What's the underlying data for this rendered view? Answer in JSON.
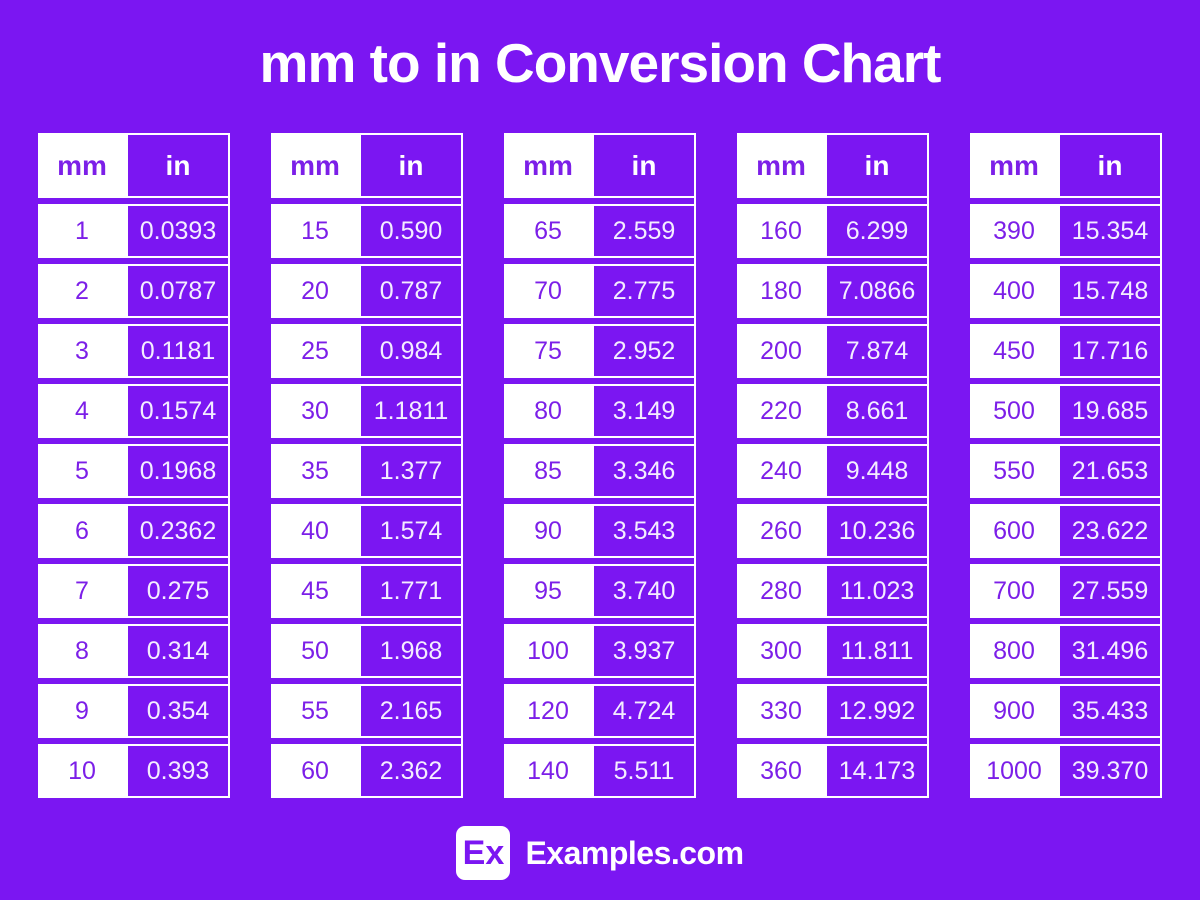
{
  "page": {
    "title": "mm to in Conversion Chart"
  },
  "footer": {
    "logo_badge": "Ex",
    "site_name": "Examples.com"
  },
  "colors": {
    "background": "#7b16f2",
    "cell_purple": "#7b16f2",
    "header_text_on_white": "#7c1fe8",
    "text_on_purple": "#ffffff"
  },
  "chart_data": {
    "type": "table",
    "title": "mm to in Conversion Chart",
    "columns": [
      "mm",
      "in"
    ],
    "tables": [
      {
        "rows": [
          [
            "1",
            "0.0393"
          ],
          [
            "2",
            "0.0787"
          ],
          [
            "3",
            "0.1181"
          ],
          [
            "4",
            "0.1574"
          ],
          [
            "5",
            "0.1968"
          ],
          [
            "6",
            "0.2362"
          ],
          [
            "7",
            "0.275"
          ],
          [
            "8",
            "0.314"
          ],
          [
            "9",
            "0.354"
          ],
          [
            "10",
            "0.393"
          ]
        ]
      },
      {
        "rows": [
          [
            "15",
            "0.590"
          ],
          [
            "20",
            "0.787"
          ],
          [
            "25",
            "0.984"
          ],
          [
            "30",
            "1.1811"
          ],
          [
            "35",
            "1.377"
          ],
          [
            "40",
            "1.574"
          ],
          [
            "45",
            "1.771"
          ],
          [
            "50",
            "1.968"
          ],
          [
            "55",
            "2.165"
          ],
          [
            "60",
            "2.362"
          ]
        ]
      },
      {
        "rows": [
          [
            "65",
            "2.559"
          ],
          [
            "70",
            "2.775"
          ],
          [
            "75",
            "2.952"
          ],
          [
            "80",
            "3.149"
          ],
          [
            "85",
            "3.346"
          ],
          [
            "90",
            "3.543"
          ],
          [
            "95",
            "3.740"
          ],
          [
            "100",
            "3.937"
          ],
          [
            "120",
            "4.724"
          ],
          [
            "140",
            "5.511"
          ]
        ]
      },
      {
        "rows": [
          [
            "160",
            "6.299"
          ],
          [
            "180",
            "7.0866"
          ],
          [
            "200",
            "7.874"
          ],
          [
            "220",
            "8.661"
          ],
          [
            "240",
            "9.448"
          ],
          [
            "260",
            "10.236"
          ],
          [
            "280",
            "11.023"
          ],
          [
            "300",
            "11.811"
          ],
          [
            "330",
            "12.992"
          ],
          [
            "360",
            "14.173"
          ]
        ]
      },
      {
        "rows": [
          [
            "390",
            "15.354"
          ],
          [
            "400",
            "15.748"
          ],
          [
            "450",
            "17.716"
          ],
          [
            "500",
            "19.685"
          ],
          [
            "550",
            "21.653"
          ],
          [
            "600",
            "23.622"
          ],
          [
            "700",
            "27.559"
          ],
          [
            "800",
            "31.496"
          ],
          [
            "900",
            "35.433"
          ],
          [
            "1000",
            "39.370"
          ]
        ]
      }
    ]
  }
}
